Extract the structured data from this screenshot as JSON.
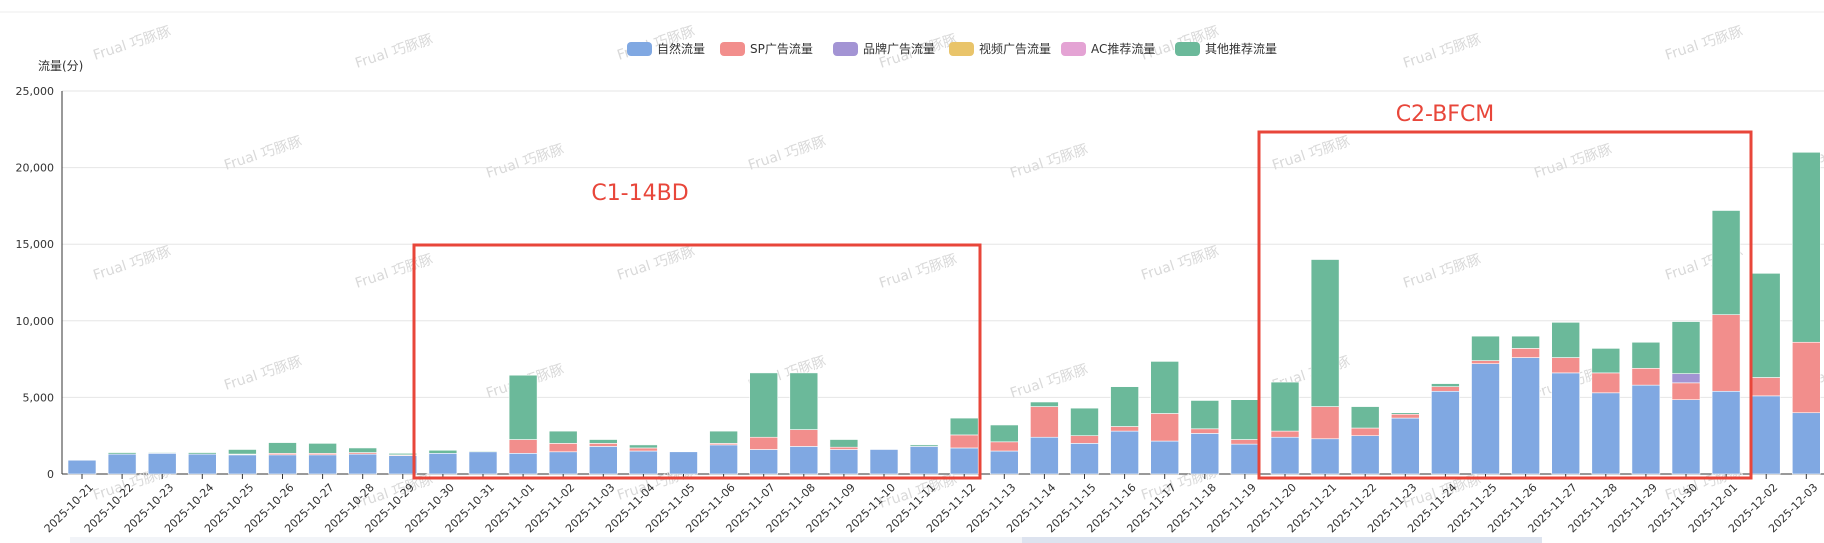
{
  "chart_data": {
    "type": "bar",
    "stacked": true,
    "ylabel": "流量(分)",
    "ylim": [
      0,
      25000
    ],
    "yticks": [
      "0",
      "5,000",
      "10,000",
      "15,000",
      "20,000",
      "25,000"
    ],
    "ytick_values": [
      0,
      5000,
      10000,
      15000,
      20000,
      25000
    ],
    "grid": true,
    "legend_position": "top",
    "categories": [
      "2025-10-21",
      "2025-10-22",
      "2025-10-23",
      "2025-10-24",
      "2025-10-25",
      "2025-10-26",
      "2025-10-27",
      "2025-10-28",
      "2025-10-29",
      "2025-10-30",
      "2025-10-31",
      "2025-11-01",
      "2025-11-02",
      "2025-11-03",
      "2025-11-04",
      "2025-11-05",
      "2025-11-06",
      "2025-11-07",
      "2025-11-08",
      "2025-11-09",
      "2025-11-10",
      "2025-11-11",
      "2025-11-12",
      "2025-11-13",
      "2025-11-14",
      "2025-11-15",
      "2025-11-16",
      "2025-11-17",
      "2025-11-18",
      "2025-11-19",
      "2025-11-20",
      "2025-11-21",
      "2025-11-22",
      "2025-11-23",
      "2025-11-24",
      "2025-11-25",
      "2025-11-26",
      "2025-11-27",
      "2025-11-28",
      "2025-11-29",
      "2025-11-30",
      "2025-12-01",
      "2025-12-02",
      "2025-12-03"
    ],
    "series": [
      {
        "name": "自然流量",
        "color": "#80a8e2",
        "values": [
          900,
          1300,
          1350,
          1300,
          1250,
          1250,
          1250,
          1300,
          1200,
          1350,
          1450,
          1350,
          1450,
          1800,
          1500,
          1450,
          1900,
          1600,
          1800,
          1600,
          1600,
          1800,
          1700,
          1500,
          2400,
          2000,
          2800,
          2150,
          2650,
          1950,
          2400,
          2300,
          2500,
          3650,
          5400,
          7200,
          7600,
          6600,
          5300,
          5800,
          4850,
          5400,
          5100,
          4000
        ]
      },
      {
        "name": "SP广告流量",
        "color": "#f28e8c",
        "values": [
          0,
          0,
          0,
          0,
          50,
          100,
          100,
          100,
          50,
          0,
          0,
          900,
          550,
          200,
          200,
          0,
          100,
          800,
          1100,
          150,
          0,
          0,
          850,
          600,
          2000,
          500,
          300,
          1800,
          300,
          300,
          400,
          2100,
          500,
          250,
          300,
          200,
          600,
          1000,
          1300,
          1100,
          1100,
          5000,
          1200,
          4600
        ]
      },
      {
        "name": "品牌广告流量",
        "color": "#a394d4",
        "values": [
          0,
          0,
          0,
          0,
          0,
          0,
          0,
          0,
          0,
          0,
          0,
          0,
          0,
          0,
          0,
          0,
          0,
          0,
          0,
          0,
          0,
          0,
          0,
          0,
          0,
          0,
          0,
          0,
          0,
          0,
          0,
          0,
          0,
          0,
          0,
          0,
          0,
          0,
          0,
          0,
          600,
          0,
          0,
          0
        ]
      },
      {
        "name": "视频广告流量",
        "color": "#e9c46a",
        "values": [
          0,
          0,
          0,
          0,
          0,
          0,
          0,
          0,
          0,
          0,
          0,
          0,
          0,
          0,
          0,
          0,
          0,
          0,
          0,
          0,
          0,
          0,
          0,
          0,
          0,
          0,
          0,
          0,
          0,
          0,
          0,
          0,
          0,
          0,
          0,
          0,
          0,
          0,
          0,
          0,
          0,
          0,
          0,
          0
        ]
      },
      {
        "name": "AC推荐流量",
        "color": "#e4a3d4",
        "values": [
          0,
          0,
          0,
          0,
          0,
          0,
          0,
          0,
          0,
          0,
          0,
          0,
          0,
          0,
          0,
          0,
          0,
          0,
          0,
          0,
          0,
          0,
          0,
          0,
          0,
          0,
          0,
          0,
          0,
          0,
          0,
          0,
          0,
          0,
          0,
          0,
          0,
          0,
          0,
          0,
          0,
          0,
          0,
          0
        ]
      },
      {
        "name": "其他推荐流量",
        "color": "#6bb99a",
        "values": [
          0,
          100,
          50,
          100,
          300,
          700,
          650,
          300,
          100,
          200,
          50,
          4200,
          800,
          250,
          200,
          0,
          800,
          4200,
          3700,
          500,
          0,
          100,
          1100,
          1100,
          300,
          1800,
          2600,
          3400,
          1850,
          2600,
          3200,
          9600,
          1400,
          100,
          200,
          1600,
          800,
          2300,
          1600,
          1700,
          3400,
          6800,
          6800,
          12400
        ]
      }
    ],
    "annotations": [
      {
        "label": "C1-14BD",
        "color": "#e8463a"
      },
      {
        "label": "C2-BFCM",
        "color": "#e8463a"
      }
    ],
    "watermark": "Frual 巧豚豚"
  }
}
